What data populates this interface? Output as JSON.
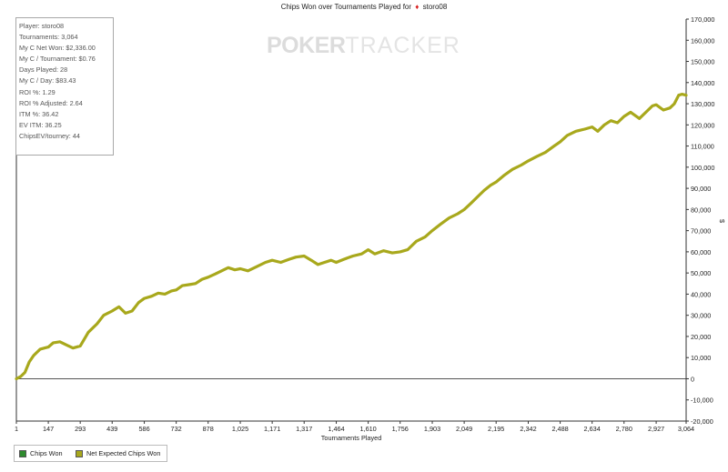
{
  "header": {
    "title": "Chips Won over Tournaments Played for",
    "player": "storo08",
    "suit_icon": "diamond-icon"
  },
  "watermark": {
    "poker": "POKER",
    "tracker": "TRACKER"
  },
  "stats": [
    "Player: storo08",
    "Tournaments: 3,064",
    "My C Net Won: $2,336.00",
    "My C / Tournament: $0.76",
    "Days Played: 28",
    "My C / Day: $83.43",
    "ROI %: 1.29",
    "ROI % Adjusted: 2.64",
    "ITM %: 36.42",
    "EV ITM: 36.25",
    "ChipsEV/tourney: 44"
  ],
  "legend": {
    "chips_won": {
      "label": "Chips Won",
      "color": "#2e8b2e"
    },
    "net_expected": {
      "label": "Net Expected Chips Won",
      "color": "#a8a81c"
    }
  },
  "chart_data": {
    "type": "line",
    "title": "Chips Won over Tournaments Played for storo08",
    "xlabel": "Tournaments Played",
    "ylabel": "$",
    "xlim": [
      1,
      3064
    ],
    "ylim": [
      -20000,
      170000
    ],
    "x_ticks": [
      "1",
      "147",
      "293",
      "439",
      "586",
      "732",
      "878",
      "1,025",
      "1,171",
      "1,317",
      "1,464",
      "1,610",
      "1,756",
      "1,903",
      "2,049",
      "2,195",
      "2,342",
      "2,488",
      "2,634",
      "2,780",
      "2,927",
      "3,064"
    ],
    "x_tick_values": [
      1,
      147,
      293,
      439,
      586,
      732,
      878,
      1025,
      1171,
      1317,
      1464,
      1610,
      1756,
      1903,
      2049,
      2195,
      2342,
      2488,
      2634,
      2780,
      2927,
      3064
    ],
    "y_ticks": [
      "-20,000",
      "-10,000",
      "0",
      "10,000",
      "20,000",
      "30,000",
      "40,000",
      "50,000",
      "60,000",
      "70,000",
      "80,000",
      "90,000",
      "100,000",
      "110,000",
      "120,000",
      "130,000",
      "140,000",
      "150,000",
      "160,000",
      "170,000"
    ],
    "y_tick_values": [
      -20000,
      -10000,
      0,
      10000,
      20000,
      30000,
      40000,
      50000,
      60000,
      70000,
      80000,
      90000,
      100000,
      110000,
      120000,
      130000,
      140000,
      150000,
      160000,
      170000
    ],
    "series": [
      {
        "name": "Net Expected Chips Won",
        "color": "#a8a81c",
        "x": [
          1,
          20,
          40,
          60,
          80,
          110,
          147,
          170,
          200,
          230,
          260,
          293,
          330,
          370,
          400,
          439,
          470,
          500,
          530,
          560,
          586,
          620,
          650,
          680,
          710,
          732,
          760,
          790,
          820,
          850,
          878,
          910,
          940,
          970,
          1000,
          1025,
          1060,
          1100,
          1140,
          1171,
          1210,
          1250,
          1280,
          1317,
          1350,
          1380,
          1410,
          1440,
          1464,
          1500,
          1540,
          1580,
          1610,
          1640,
          1680,
          1720,
          1756,
          1790,
          1830,
          1870,
          1903,
          1940,
          1980,
          2020,
          2049,
          2080,
          2110,
          2140,
          2170,
          2195,
          2230,
          2270,
          2310,
          2342,
          2380,
          2420,
          2460,
          2488,
          2520,
          2560,
          2600,
          2634,
          2660,
          2690,
          2720,
          2750,
          2780,
          2810,
          2850,
          2880,
          2910,
          2927,
          2960,
          2990,
          3010,
          3030,
          3045,
          3064
        ],
        "y": [
          0,
          1000,
          3000,
          8000,
          11000,
          14000,
          15000,
          17000,
          17500,
          16000,
          14500,
          15500,
          22000,
          26000,
          30000,
          32000,
          34000,
          31000,
          32000,
          36000,
          38000,
          39000,
          40500,
          40000,
          41500,
          42000,
          44000,
          44500,
          45000,
          47000,
          48000,
          49500,
          51000,
          52500,
          51500,
          52000,
          51000,
          53000,
          55000,
          56000,
          55000,
          56500,
          57500,
          58000,
          56000,
          54000,
          55000,
          56000,
          55000,
          56500,
          58000,
          59000,
          61000,
          59000,
          60500,
          59500,
          60000,
          61000,
          65000,
          67000,
          70000,
          73000,
          76000,
          78000,
          80000,
          83000,
          86000,
          89000,
          91500,
          93000,
          96000,
          99000,
          101000,
          103000,
          105000,
          107000,
          110000,
          112000,
          115000,
          117000,
          118000,
          119000,
          117000,
          120000,
          122000,
          121000,
          124000,
          126000,
          123000,
          126000,
          129000,
          129500,
          127000,
          128000,
          130000,
          134000,
          134500,
          134000
        ]
      }
    ],
    "colors": {
      "line": "#a8a81c",
      "zero_line": "#555555",
      "axis": "#333333"
    }
  }
}
